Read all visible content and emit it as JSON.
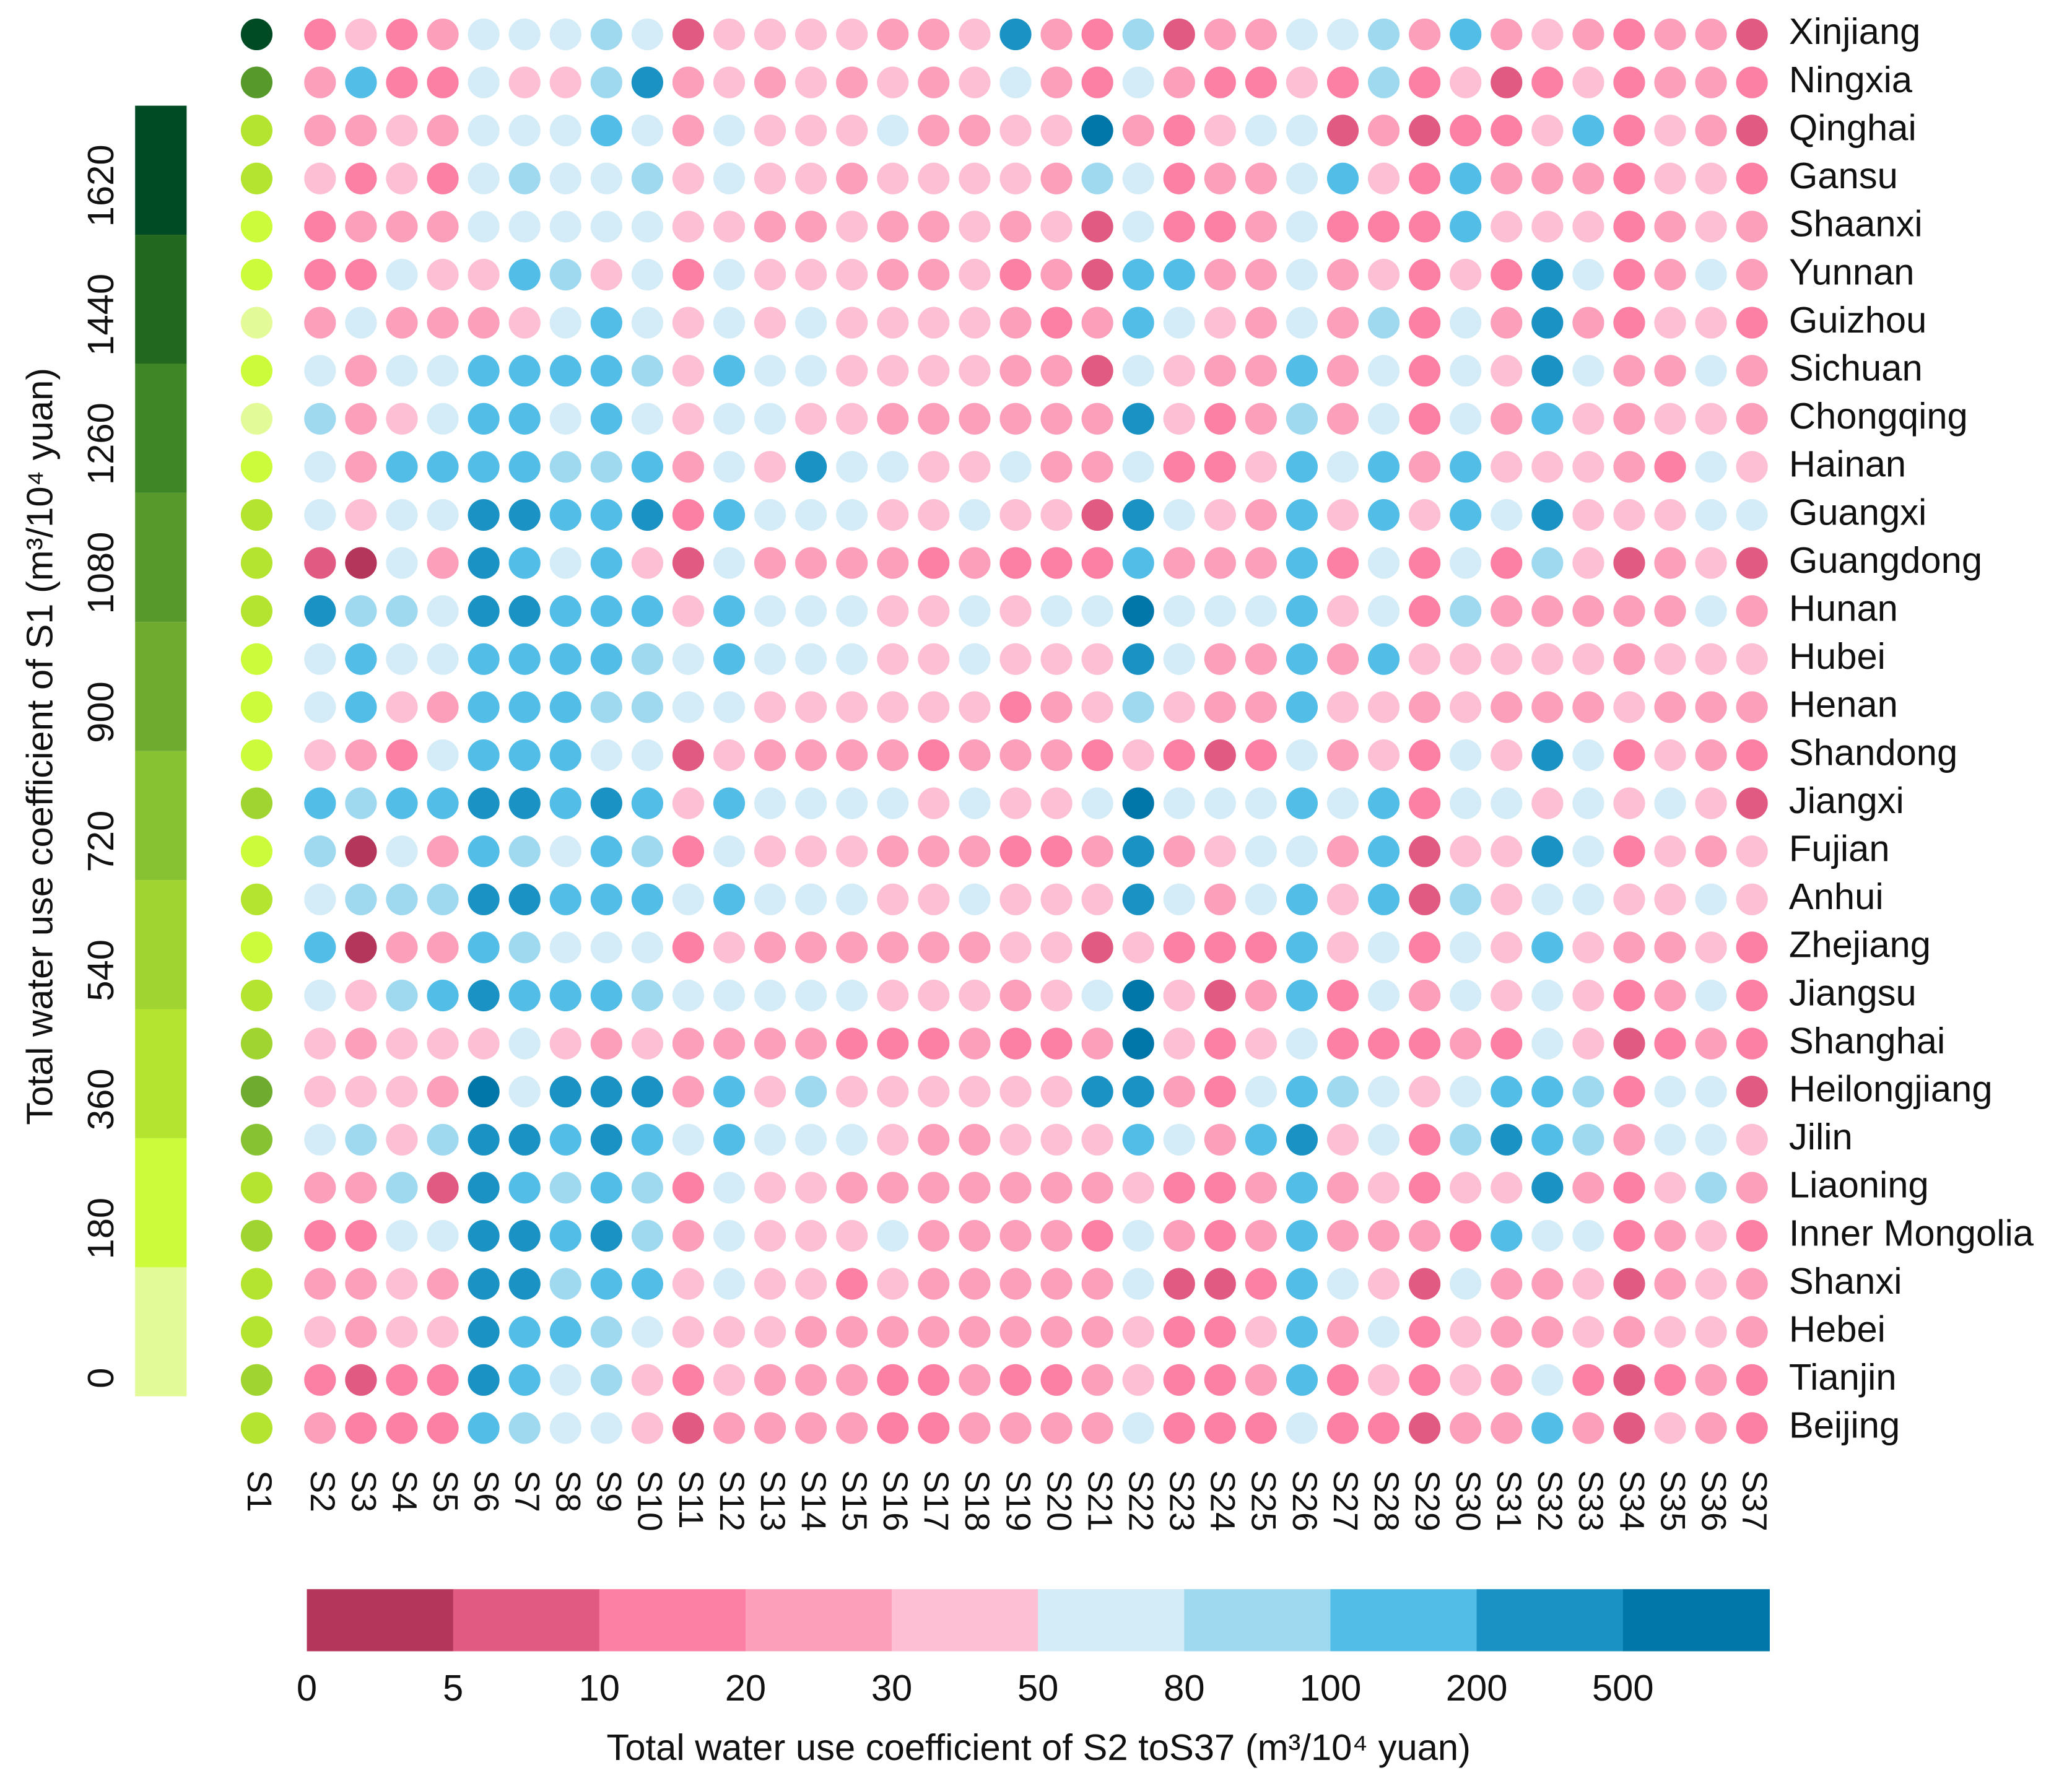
{
  "chart_data": {
    "type": "dot-matrix",
    "rows": [
      "Xinjiang",
      "Ningxia",
      "Qinghai",
      "Gansu",
      "Shaanxi",
      "Yunnan",
      "Guizhou",
      "Sichuan",
      "Chongqing",
      "Hainan",
      "Guangxi",
      "Guangdong",
      "Hunan",
      "Hubei",
      "Henan",
      "Shandong",
      "Jiangxi",
      "Fujian",
      "Anhui",
      "Zhejiang",
      "Jiangsu",
      "Shanghai",
      "Heilongjiang",
      "Jilin",
      "Liaoning",
      "Inner Mongolia",
      "Shanxi",
      "Hebei",
      "Tianjin",
      "Beijing"
    ],
    "columns": [
      "S1",
      "S2",
      "S3",
      "S4",
      "S5",
      "S6",
      "S7",
      "S8",
      "S9",
      "S10",
      "S11",
      "S12",
      "S13",
      "S14",
      "S15",
      "S16",
      "S17",
      "S18",
      "S19",
      "S20",
      "S21",
      "S22",
      "S23",
      "S24",
      "S25",
      "S26",
      "S27",
      "S28",
      "S29",
      "S30",
      "S31",
      "S32",
      "S33",
      "S34",
      "S35",
      "S36",
      "S37"
    ],
    "s1_values": [
      1700,
      1150,
      500,
      500,
      300,
      300,
      100,
      300,
      100,
      300,
      500,
      450,
      450,
      300,
      300,
      300,
      650,
      300,
      500,
      300,
      450,
      650,
      1000,
      800,
      450,
      650,
      500,
      450,
      650,
      450
    ],
    "values": [
      [
        15,
        40,
        15,
        25,
        65,
        65,
        65,
        90,
        65,
        7,
        40,
        40,
        40,
        40,
        25,
        25,
        40,
        300,
        25,
        15,
        90,
        7,
        25,
        25,
        65,
        65,
        90,
        25,
        150,
        25,
        40,
        25,
        15,
        25,
        25,
        7
      ],
      [
        25,
        150,
        15,
        15,
        65,
        40,
        40,
        90,
        300,
        25,
        40,
        25,
        40,
        25,
        40,
        25,
        40,
        65,
        25,
        15,
        65,
        25,
        15,
        15,
        40,
        15,
        90,
        15,
        40,
        7,
        15,
        40,
        15,
        25,
        25,
        15
      ],
      [
        25,
        25,
        40,
        25,
        65,
        65,
        65,
        150,
        65,
        25,
        65,
        40,
        40,
        40,
        65,
        25,
        25,
        40,
        40,
        600,
        25,
        15,
        40,
        65,
        65,
        7,
        25,
        7,
        15,
        15,
        40,
        150,
        15,
        40,
        25,
        7
      ],
      [
        40,
        15,
        40,
        15,
        65,
        90,
        65,
        65,
        90,
        40,
        65,
        40,
        40,
        25,
        40,
        40,
        40,
        40,
        25,
        90,
        65,
        15,
        25,
        25,
        65,
        150,
        40,
        15,
        150,
        25,
        25,
        25,
        15,
        40,
        40,
        15
      ],
      [
        15,
        25,
        25,
        25,
        65,
        65,
        65,
        65,
        65,
        40,
        40,
        25,
        25,
        40,
        25,
        25,
        40,
        25,
        40,
        7,
        65,
        15,
        15,
        25,
        65,
        15,
        15,
        15,
        150,
        40,
        40,
        40,
        15,
        25,
        40,
        25
      ],
      [
        15,
        15,
        65,
        40,
        40,
        150,
        90,
        40,
        65,
        15,
        65,
        40,
        40,
        40,
        25,
        25,
        40,
        15,
        25,
        7,
        150,
        150,
        25,
        25,
        65,
        25,
        40,
        15,
        40,
        15,
        300,
        65,
        15,
        25,
        65,
        25
      ],
      [
        25,
        65,
        25,
        25,
        25,
        40,
        65,
        150,
        65,
        40,
        65,
        40,
        65,
        40,
        40,
        40,
        40,
        25,
        15,
        25,
        150,
        65,
        40,
        25,
        65,
        25,
        90,
        15,
        65,
        25,
        300,
        25,
        15,
        40,
        40,
        15
      ],
      [
        65,
        25,
        65,
        65,
        150,
        150,
        150,
        150,
        90,
        40,
        150,
        65,
        65,
        40,
        40,
        40,
        40,
        25,
        25,
        7,
        65,
        40,
        25,
        25,
        150,
        25,
        65,
        15,
        65,
        40,
        300,
        65,
        25,
        25,
        65,
        25
      ],
      [
        90,
        25,
        40,
        65,
        150,
        150,
        65,
        150,
        65,
        40,
        65,
        65,
        40,
        40,
        25,
        25,
        25,
        25,
        25,
        25,
        300,
        40,
        15,
        25,
        90,
        25,
        65,
        15,
        65,
        25,
        150,
        40,
        25,
        40,
        40,
        25
      ],
      [
        65,
        25,
        150,
        150,
        150,
        150,
        90,
        90,
        150,
        25,
        65,
        40,
        300,
        65,
        65,
        40,
        40,
        65,
        25,
        25,
        65,
        15,
        15,
        40,
        150,
        65,
        150,
        25,
        150,
        40,
        40,
        40,
        25,
        15,
        65,
        40
      ],
      [
        65,
        40,
        65,
        65,
        300,
        300,
        150,
        150,
        300,
        15,
        150,
        65,
        65,
        65,
        40,
        40,
        65,
        40,
        40,
        7,
        300,
        65,
        40,
        25,
        150,
        40,
        150,
        40,
        150,
        65,
        300,
        40,
        40,
        40,
        65,
        65
      ],
      [
        7,
        3,
        65,
        25,
        300,
        150,
        65,
        150,
        40,
        7,
        65,
        25,
        25,
        25,
        25,
        15,
        25,
        15,
        15,
        15,
        150,
        25,
        25,
        25,
        150,
        15,
        65,
        15,
        65,
        15,
        90,
        40,
        7,
        25,
        40,
        7
      ],
      [
        300,
        90,
        90,
        65,
        300,
        300,
        150,
        150,
        150,
        40,
        150,
        65,
        65,
        65,
        40,
        40,
        65,
        40,
        65,
        65,
        600,
        65,
        65,
        65,
        150,
        40,
        65,
        15,
        90,
        25,
        25,
        25,
        25,
        25,
        65,
        25
      ],
      [
        65,
        150,
        65,
        65,
        150,
        150,
        150,
        150,
        90,
        65,
        150,
        65,
        65,
        65,
        40,
        40,
        65,
        40,
        40,
        40,
        300,
        65,
        25,
        25,
        150,
        25,
        150,
        40,
        40,
        40,
        40,
        40,
        25,
        40,
        40,
        40
      ],
      [
        65,
        150,
        40,
        25,
        150,
        150,
        150,
        90,
        90,
        65,
        65,
        40,
        40,
        40,
        40,
        40,
        40,
        15,
        25,
        40,
        90,
        40,
        25,
        25,
        150,
        40,
        40,
        25,
        40,
        25,
        25,
        25,
        40,
        25,
        25,
        25
      ],
      [
        40,
        25,
        15,
        65,
        150,
        150,
        150,
        65,
        65,
        7,
        40,
        25,
        25,
        25,
        25,
        15,
        25,
        25,
        25,
        15,
        40,
        15,
        7,
        15,
        65,
        25,
        40,
        15,
        65,
        40,
        300,
        65,
        15,
        40,
        25,
        15
      ],
      [
        150,
        90,
        150,
        150,
        300,
        300,
        150,
        300,
        150,
        40,
        150,
        65,
        65,
        65,
        65,
        40,
        65,
        40,
        40,
        65,
        600,
        65,
        65,
        65,
        150,
        65,
        150,
        15,
        65,
        65,
        40,
        65,
        40,
        65,
        40,
        7
      ],
      [
        90,
        3,
        65,
        25,
        150,
        90,
        65,
        150,
        90,
        15,
        65,
        40,
        40,
        40,
        25,
        25,
        25,
        15,
        15,
        25,
        300,
        25,
        40,
        65,
        65,
        25,
        150,
        7,
        40,
        40,
        300,
        65,
        15,
        40,
        25,
        40
      ],
      [
        65,
        90,
        90,
        90,
        300,
        300,
        150,
        150,
        150,
        65,
        150,
        65,
        65,
        65,
        40,
        40,
        65,
        40,
        40,
        40,
        300,
        65,
        25,
        65,
        150,
        40,
        150,
        7,
        90,
        40,
        65,
        65,
        40,
        40,
        65,
        40
      ],
      [
        150,
        3,
        25,
        25,
        150,
        90,
        65,
        65,
        65,
        15,
        40,
        25,
        25,
        25,
        25,
        25,
        25,
        40,
        40,
        7,
        40,
        15,
        15,
        15,
        150,
        40,
        65,
        15,
        65,
        40,
        150,
        40,
        25,
        25,
        40,
        15
      ],
      [
        65,
        40,
        90,
        150,
        300,
        150,
        150,
        150,
        90,
        65,
        65,
        65,
        65,
        65,
        40,
        40,
        40,
        25,
        40,
        65,
        600,
        40,
        7,
        25,
        150,
        15,
        65,
        25,
        65,
        40,
        65,
        40,
        15,
        25,
        65,
        15
      ],
      [
        40,
        25,
        40,
        40,
        40,
        65,
        40,
        25,
        40,
        25,
        25,
        25,
        25,
        15,
        15,
        15,
        25,
        15,
        15,
        25,
        600,
        40,
        15,
        40,
        65,
        15,
        15,
        15,
        25,
        15,
        65,
        40,
        7,
        15,
        25,
        15
      ],
      [
        40,
        40,
        40,
        25,
        600,
        65,
        300,
        300,
        300,
        25,
        150,
        40,
        90,
        40,
        40,
        40,
        40,
        40,
        40,
        300,
        300,
        25,
        15,
        65,
        150,
        90,
        65,
        40,
        65,
        150,
        150,
        90,
        15,
        65,
        65,
        7
      ],
      [
        65,
        90,
        40,
        90,
        300,
        300,
        150,
        300,
        150,
        65,
        150,
        65,
        65,
        65,
        40,
        25,
        25,
        40,
        40,
        40,
        150,
        65,
        25,
        150,
        300,
        40,
        65,
        15,
        90,
        300,
        150,
        90,
        25,
        65,
        65,
        40
      ],
      [
        25,
        25,
        90,
        7,
        300,
        150,
        90,
        150,
        90,
        15,
        65,
        40,
        40,
        25,
        25,
        25,
        25,
        25,
        25,
        25,
        40,
        15,
        15,
        25,
        150,
        25,
        40,
        15,
        40,
        40,
        300,
        25,
        15,
        40,
        90,
        25
      ],
      [
        15,
        15,
        65,
        65,
        300,
        300,
        150,
        300,
        90,
        25,
        65,
        40,
        40,
        40,
        65,
        25,
        25,
        25,
        25,
        15,
        65,
        25,
        15,
        25,
        150,
        25,
        25,
        25,
        15,
        150,
        65,
        65,
        15,
        25,
        40,
        15
      ],
      [
        25,
        25,
        40,
        25,
        300,
        300,
        90,
        150,
        150,
        40,
        65,
        40,
        40,
        15,
        40,
        25,
        25,
        25,
        25,
        25,
        65,
        7,
        7,
        15,
        150,
        65,
        40,
        7,
        65,
        25,
        25,
        40,
        7,
        25,
        40,
        25
      ],
      [
        40,
        25,
        40,
        40,
        300,
        150,
        150,
        90,
        65,
        40,
        40,
        40,
        25,
        25,
        25,
        25,
        25,
        25,
        25,
        25,
        40,
        15,
        15,
        40,
        150,
        25,
        65,
        15,
        40,
        25,
        25,
        40,
        25,
        40,
        40,
        25
      ],
      [
        15,
        7,
        15,
        15,
        300,
        150,
        65,
        90,
        40,
        15,
        40,
        25,
        25,
        25,
        15,
        15,
        25,
        15,
        15,
        25,
        40,
        15,
        15,
        25,
        150,
        15,
        40,
        15,
        40,
        25,
        65,
        15,
        7,
        15,
        25,
        15
      ],
      [
        25,
        15,
        15,
        15,
        150,
        90,
        65,
        65,
        40,
        7,
        25,
        25,
        25,
        25,
        15,
        15,
        25,
        25,
        25,
        25,
        65,
        15,
        15,
        15,
        65,
        15,
        15,
        7,
        25,
        25,
        150,
        25,
        7,
        40,
        25,
        15
      ]
    ],
    "s1_scale": {
      "title": "Total water use coefficient of S1 (m³/10⁴ yuan)",
      "lim": [
        0,
        1800
      ],
      "ticks": [
        0,
        180,
        360,
        540,
        720,
        900,
        1080,
        1260,
        1440,
        1620
      ],
      "colors": [
        "#e2fa98",
        "#cbfb3a",
        "#b4e42f",
        "#a0d531",
        "#87c232",
        "#6fab2f",
        "#579a2b",
        "#3f8626",
        "#22691f",
        "#004b24"
      ]
    },
    "scale": {
      "title": "Total water use coefficient of S2 toS37  (m³/10⁴ yuan)",
      "ticks": [
        0,
        5,
        10,
        20,
        30,
        50,
        80,
        100,
        200,
        500
      ],
      "colors": [
        "#b5365b",
        "#e05a82",
        "#fc7fa4",
        "#fb9fba",
        "#fdbfd3",
        "#d3ecf7",
        "#9ed9f0",
        "#52bde6",
        "#1a93c4",
        "#0077a8"
      ]
    }
  }
}
